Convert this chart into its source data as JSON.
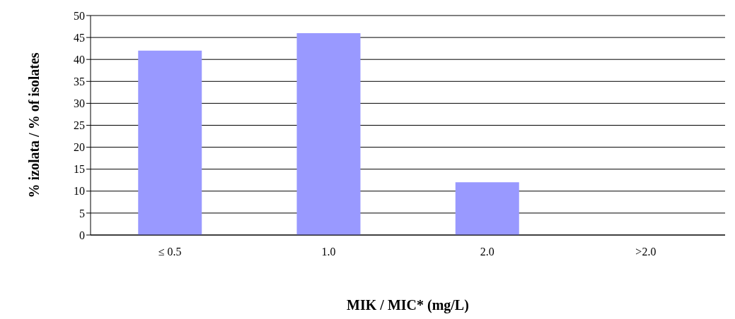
{
  "chart_data": {
    "type": "bar",
    "categories": [
      "≤ 0.5",
      "1.0",
      "2.0",
      ">2.0"
    ],
    "values": [
      42,
      46,
      12,
      0
    ],
    "color": "#9999ff",
    "xlabel": "MIK / MIC* (mg/L)",
    "ylabel": "% izolata / % of isolates",
    "ylim": [
      0,
      50
    ],
    "yticks": [
      0,
      5,
      10,
      15,
      20,
      25,
      30,
      35,
      40,
      45,
      50
    ],
    "grid": "y"
  }
}
